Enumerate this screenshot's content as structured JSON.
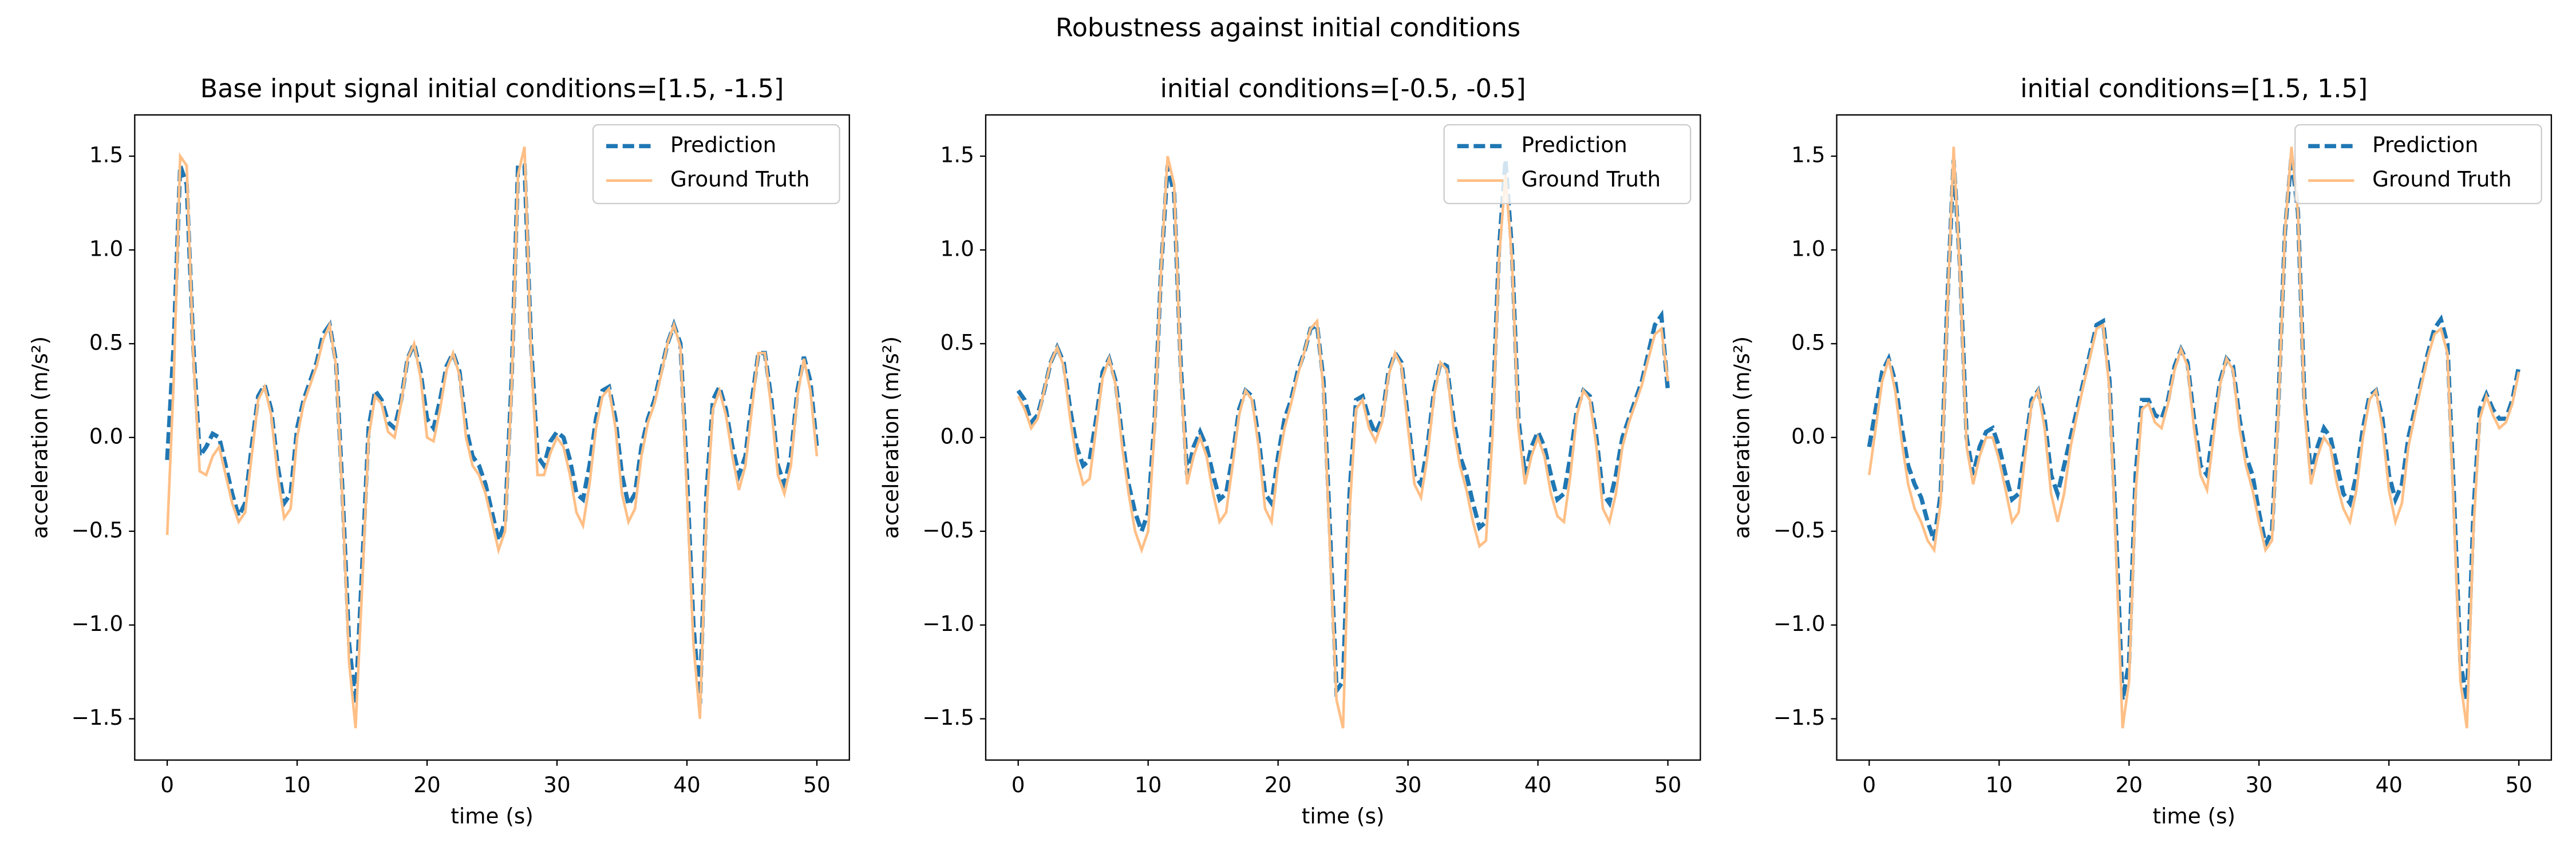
{
  "title": "Robustness against initial conditions",
  "chart_data": [
    {
      "type": "line",
      "title": "Base input signal initial conditions=[1.5, -1.5]",
      "xlabel": "time (s)",
      "ylabel": "acceleration (m/s²)",
      "x": [
        0,
        0.5,
        1,
        1.5,
        2,
        2.5,
        3,
        3.5,
        4,
        4.5,
        5,
        5.5,
        6,
        6.5,
        7,
        7.5,
        8,
        8.5,
        9,
        9.5,
        10,
        10.5,
        11,
        11.5,
        12,
        12.5,
        13,
        13.5,
        14,
        14.5,
        15,
        15.5,
        16,
        16.5,
        17,
        17.5,
        18,
        18.5,
        19,
        19.5,
        20,
        20.5,
        21,
        21.5,
        22,
        22.5,
        23,
        23.5,
        24,
        24.5,
        25,
        25.5,
        26,
        26.5,
        27,
        27.5,
        28,
        28.5,
        29,
        29.5,
        30,
        30.5,
        31,
        31.5,
        32,
        32.5,
        33,
        33.5,
        34,
        34.5,
        35,
        35.5,
        36,
        36.5,
        37,
        37.5,
        38,
        38.5,
        39,
        39.5,
        40,
        40.5,
        41,
        41.5,
        42,
        42.5,
        43,
        43.5,
        44,
        44.5,
        45,
        45.5,
        46,
        46.5,
        47,
        47.5,
        48,
        48.5,
        49,
        49.5,
        50
      ],
      "series": [
        {
          "name": "Prediction",
          "color": "#1f77b4",
          "linestyle": "dashed",
          "values": [
            -0.12,
            0.5,
            1.45,
            1.35,
            0.5,
            -0.1,
            -0.05,
            0.02,
            0.0,
            -0.15,
            -0.3,
            -0.42,
            -0.35,
            -0.05,
            0.22,
            0.28,
            0.15,
            -0.15,
            -0.35,
            -0.3,
            0.05,
            0.2,
            0.3,
            0.4,
            0.55,
            0.6,
            0.4,
            -0.3,
            -1.1,
            -1.42,
            -0.7,
            0.05,
            0.25,
            0.2,
            0.08,
            0.05,
            0.2,
            0.42,
            0.5,
            0.35,
            0.1,
            0.05,
            0.2,
            0.38,
            0.45,
            0.35,
            0.05,
            -0.1,
            -0.15,
            -0.25,
            -0.4,
            -0.55,
            -0.45,
            0.3,
            1.45,
            1.45,
            0.5,
            -0.1,
            -0.15,
            -0.02,
            0.03,
            0.0,
            -0.12,
            -0.3,
            -0.33,
            -0.15,
            0.1,
            0.25,
            0.27,
            0.1,
            -0.2,
            -0.36,
            -0.3,
            -0.05,
            0.1,
            0.2,
            0.35,
            0.5,
            0.6,
            0.5,
            -0.2,
            -1.0,
            -1.42,
            -0.3,
            0.2,
            0.27,
            0.15,
            -0.05,
            -0.2,
            -0.1,
            0.2,
            0.45,
            0.45,
            0.2,
            -0.15,
            -0.25,
            -0.1,
            0.25,
            0.43,
            0.3,
            -0.05
          ]
        },
        {
          "name": "Ground Truth",
          "color": "#ffbf86",
          "linestyle": "solid",
          "values": [
            -0.52,
            0.3,
            1.5,
            1.45,
            0.45,
            -0.18,
            -0.2,
            -0.1,
            -0.05,
            -0.2,
            -0.35,
            -0.45,
            -0.4,
            -0.1,
            0.2,
            0.27,
            0.12,
            -0.2,
            -0.43,
            -0.38,
            0.0,
            0.18,
            0.28,
            0.38,
            0.52,
            0.6,
            0.38,
            -0.35,
            -1.2,
            -1.55,
            -0.8,
            0.0,
            0.22,
            0.18,
            0.03,
            0.0,
            0.18,
            0.42,
            0.5,
            0.32,
            0.0,
            -0.02,
            0.15,
            0.36,
            0.45,
            0.33,
            0.0,
            -0.15,
            -0.2,
            -0.3,
            -0.45,
            -0.6,
            -0.5,
            0.25,
            1.4,
            1.55,
            0.45,
            -0.2,
            -0.2,
            -0.08,
            0.0,
            -0.05,
            -0.2,
            -0.4,
            -0.47,
            -0.25,
            0.05,
            0.22,
            0.26,
            0.05,
            -0.3,
            -0.45,
            -0.38,
            -0.1,
            0.08,
            0.18,
            0.33,
            0.5,
            0.6,
            0.48,
            -0.3,
            -1.1,
            -1.5,
            -0.4,
            0.15,
            0.25,
            0.12,
            -0.1,
            -0.28,
            -0.15,
            0.15,
            0.45,
            0.45,
            0.15,
            -0.2,
            -0.3,
            -0.15,
            0.22,
            0.42,
            0.25,
            -0.1
          ]
        }
      ],
      "xlim": [
        -2.5,
        52.5
      ],
      "ylim": [
        -1.72,
        1.72
      ],
      "xticks": [
        0,
        10,
        20,
        30,
        40,
        50
      ],
      "yticks": [
        {
          "value": -1.5,
          "label": "−1.5"
        },
        {
          "value": -1.0,
          "label": "−1.0"
        },
        {
          "value": -0.5,
          "label": "−0.5"
        },
        {
          "value": 0,
          "label": "0.0"
        },
        0.5,
        {
          "value": 1,
          "label": "1.0"
        },
        1.5
      ],
      "legend": "upper right"
    },
    {
      "type": "line",
      "title": "initial conditions=[-0.5, -0.5]",
      "xlabel": "time (s)",
      "ylabel": "acceleration (m/s²)",
      "x": [
        0,
        0.5,
        1,
        1.5,
        2,
        2.5,
        3,
        3.5,
        4,
        4.5,
        5,
        5.5,
        6,
        6.5,
        7,
        7.5,
        8,
        8.5,
        9,
        9.5,
        10,
        10.5,
        11,
        11.5,
        12,
        12.5,
        13,
        13.5,
        14,
        14.5,
        15,
        15.5,
        16,
        16.5,
        17,
        17.5,
        18,
        18.5,
        19,
        19.5,
        20,
        20.5,
        21,
        21.5,
        22,
        22.5,
        23,
        23.5,
        24,
        24.5,
        25,
        25.5,
        26,
        26.5,
        27,
        27.5,
        28,
        28.5,
        29,
        29.5,
        30,
        30.5,
        31,
        31.5,
        32,
        32.5,
        33,
        33.5,
        34,
        34.5,
        35,
        35.5,
        36,
        36.5,
        37,
        37.5,
        38,
        38.5,
        39,
        39.5,
        40,
        40.5,
        41,
        41.5,
        42,
        42.5,
        43,
        43.5,
        44,
        44.5,
        45,
        45.5,
        46,
        46.5,
        47,
        47.5,
        48,
        48.5,
        49,
        49.5,
        50
      ],
      "series": [
        {
          "name": "Prediction",
          "color": "#1f77b4",
          "linestyle": "dashed",
          "values": [
            0.25,
            0.2,
            0.08,
            0.12,
            0.25,
            0.4,
            0.48,
            0.4,
            0.15,
            -0.05,
            -0.15,
            -0.12,
            0.1,
            0.35,
            0.42,
            0.3,
            0.0,
            -0.25,
            -0.4,
            -0.5,
            -0.4,
            0.1,
            0.9,
            1.45,
            1.3,
            0.4,
            -0.2,
            -0.05,
            0.03,
            -0.05,
            -0.2,
            -0.33,
            -0.3,
            -0.1,
            0.15,
            0.25,
            0.22,
            0.0,
            -0.3,
            -0.35,
            -0.1,
            0.1,
            0.2,
            0.35,
            0.45,
            0.58,
            0.6,
            0.3,
            -0.5,
            -1.35,
            -1.3,
            -0.3,
            0.2,
            0.22,
            0.1,
            0.02,
            0.1,
            0.35,
            0.45,
            0.4,
            0.1,
            -0.2,
            -0.25,
            -0.05,
            0.25,
            0.4,
            0.38,
            0.1,
            -0.1,
            -0.2,
            -0.35,
            -0.48,
            -0.45,
            0.1,
            1.0,
            1.48,
            1.0,
            0.1,
            -0.2,
            -0.05,
            0.03,
            -0.05,
            -0.2,
            -0.33,
            -0.3,
            -0.1,
            0.15,
            0.25,
            0.22,
            0.0,
            -0.3,
            -0.35,
            -0.2,
            0.0,
            0.1,
            0.2,
            0.3,
            0.45,
            0.6,
            0.65,
            0.25
          ]
        },
        {
          "name": "Ground Truth",
          "color": "#ffbf86",
          "linestyle": "solid",
          "values": [
            0.22,
            0.15,
            0.05,
            0.1,
            0.25,
            0.4,
            0.48,
            0.38,
            0.1,
            -0.12,
            -0.25,
            -0.22,
            0.05,
            0.32,
            0.42,
            0.28,
            -0.05,
            -0.3,
            -0.5,
            -0.6,
            -0.5,
            0.05,
            0.9,
            1.5,
            1.35,
            0.35,
            -0.25,
            -0.1,
            0.0,
            -0.1,
            -0.3,
            -0.45,
            -0.4,
            -0.15,
            0.12,
            0.25,
            0.2,
            -0.05,
            -0.38,
            -0.45,
            -0.15,
            0.05,
            0.18,
            0.33,
            0.45,
            0.58,
            0.62,
            0.25,
            -0.6,
            -1.4,
            -1.55,
            -0.4,
            0.15,
            0.2,
            0.05,
            -0.02,
            0.08,
            0.33,
            0.45,
            0.38,
            0.05,
            -0.25,
            -0.32,
            -0.1,
            0.22,
            0.4,
            0.36,
            0.05,
            -0.15,
            -0.28,
            -0.45,
            -0.58,
            -0.55,
            0.0,
            0.95,
            1.4,
            0.95,
            0.05,
            -0.25,
            -0.1,
            0.0,
            -0.1,
            -0.3,
            -0.42,
            -0.45,
            -0.2,
            0.12,
            0.25,
            0.2,
            -0.05,
            -0.38,
            -0.45,
            -0.3,
            -0.05,
            0.08,
            0.18,
            0.28,
            0.42,
            0.55,
            0.58,
            0.3
          ]
        }
      ],
      "xlim": [
        -2.5,
        52.5
      ],
      "ylim": [
        -1.72,
        1.72
      ],
      "xticks": [
        0,
        10,
        20,
        30,
        40,
        50
      ],
      "yticks": [
        {
          "value": -1.5,
          "label": "−1.5"
        },
        {
          "value": -1.0,
          "label": "−1.0"
        },
        {
          "value": -0.5,
          "label": "−0.5"
        },
        {
          "value": 0,
          "label": "0.0"
        },
        0.5,
        {
          "value": 1,
          "label": "1.0"
        },
        1.5
      ],
      "legend": "upper right"
    },
    {
      "type": "line",
      "title": "initial conditions=[1.5, 1.5]",
      "xlabel": "time (s)",
      "ylabel": "acceleration (m/s²)",
      "x": [
        0,
        0.5,
        1,
        1.5,
        2,
        2.5,
        3,
        3.5,
        4,
        4.5,
        5,
        5.5,
        6,
        6.5,
        7,
        7.5,
        8,
        8.5,
        9,
        9.5,
        10,
        10.5,
        11,
        11.5,
        12,
        12.5,
        13,
        13.5,
        14,
        14.5,
        15,
        15.5,
        16,
        16.5,
        17,
        17.5,
        18,
        18.5,
        19,
        19.5,
        20,
        20.5,
        21,
        21.5,
        22,
        22.5,
        23,
        23.5,
        24,
        24.5,
        25,
        25.5,
        26,
        26.5,
        27,
        27.5,
        28,
        28.5,
        29,
        29.5,
        30,
        30.5,
        31,
        31.5,
        32,
        32.5,
        33,
        33.5,
        34,
        34.5,
        35,
        35.5,
        36,
        36.5,
        37,
        37.5,
        38,
        38.5,
        39,
        39.5,
        40,
        40.5,
        41,
        41.5,
        42,
        42.5,
        43,
        43.5,
        44,
        44.5,
        45,
        45.5,
        46,
        46.5,
        47,
        47.5,
        48,
        48.5,
        49,
        49.5,
        50
      ],
      "series": [
        {
          "name": "Prediction",
          "color": "#1f77b4",
          "linestyle": "dashed",
          "values": [
            -0.05,
            0.15,
            0.35,
            0.42,
            0.3,
            0.05,
            -0.15,
            -0.25,
            -0.32,
            -0.45,
            -0.55,
            -0.3,
            0.7,
            1.48,
            0.9,
            0.0,
            -0.2,
            -0.05,
            0.03,
            0.05,
            -0.05,
            -0.2,
            -0.33,
            -0.3,
            -0.05,
            0.2,
            0.25,
            0.1,
            -0.2,
            -0.3,
            -0.15,
            0.0,
            0.15,
            0.3,
            0.45,
            0.6,
            0.62,
            0.3,
            -0.5,
            -1.4,
            -1.2,
            -0.2,
            0.2,
            0.2,
            0.12,
            0.1,
            0.2,
            0.38,
            0.47,
            0.4,
            0.1,
            -0.15,
            -0.2,
            0.05,
            0.3,
            0.42,
            0.38,
            0.1,
            -0.1,
            -0.2,
            -0.4,
            -0.57,
            -0.5,
            0.2,
            1.1,
            1.5,
            1.2,
            0.2,
            -0.2,
            -0.05,
            0.05,
            0.0,
            -0.15,
            -0.3,
            -0.35,
            -0.2,
            0.05,
            0.22,
            0.25,
            0.1,
            -0.2,
            -0.33,
            -0.25,
            0.0,
            0.15,
            0.3,
            0.45,
            0.58,
            0.63,
            0.5,
            -0.3,
            -1.2,
            -1.4,
            -0.4,
            0.15,
            0.23,
            0.15,
            0.1,
            0.1,
            0.2,
            0.38
          ]
        },
        {
          "name": "Ground Truth",
          "color": "#ffbf86",
          "linestyle": "solid",
          "values": [
            -0.2,
            0.05,
            0.3,
            0.42,
            0.25,
            -0.02,
            -0.25,
            -0.38,
            -0.45,
            -0.55,
            -0.6,
            -0.35,
            0.65,
            1.55,
            0.85,
            -0.05,
            -0.25,
            -0.1,
            0.0,
            0.0,
            -0.12,
            -0.28,
            -0.45,
            -0.4,
            -0.1,
            0.18,
            0.25,
            0.05,
            -0.3,
            -0.45,
            -0.3,
            -0.05,
            0.12,
            0.28,
            0.43,
            0.58,
            0.6,
            0.25,
            -0.6,
            -1.55,
            -1.3,
            -0.3,
            0.15,
            0.18,
            0.08,
            0.05,
            0.18,
            0.36,
            0.47,
            0.38,
            0.05,
            -0.2,
            -0.28,
            0.0,
            0.28,
            0.42,
            0.36,
            0.05,
            -0.15,
            -0.28,
            -0.45,
            -0.6,
            -0.55,
            0.15,
            1.1,
            1.55,
            1.2,
            0.15,
            -0.25,
            -0.1,
            0.0,
            -0.05,
            -0.25,
            -0.38,
            -0.45,
            -0.28,
            0.0,
            0.2,
            0.25,
            0.05,
            -0.28,
            -0.45,
            -0.35,
            -0.05,
            0.12,
            0.28,
            0.43,
            0.55,
            0.58,
            0.45,
            -0.4,
            -1.3,
            -1.55,
            -0.5,
            0.1,
            0.22,
            0.12,
            0.05,
            0.08,
            0.18,
            0.35
          ]
        }
      ],
      "xlim": [
        -2.5,
        52.5
      ],
      "ylim": [
        -1.72,
        1.72
      ],
      "xticks": [
        0,
        10,
        20,
        30,
        40,
        50
      ],
      "yticks": [
        {
          "value": -1.5,
          "label": "−1.5"
        },
        {
          "value": -1.0,
          "label": "−1.0"
        },
        {
          "value": -0.5,
          "label": "−0.5"
        },
        {
          "value": 0,
          "label": "0.0"
        },
        0.5,
        {
          "value": 1,
          "label": "1.0"
        },
        1.5
      ],
      "legend": "upper right"
    }
  ]
}
